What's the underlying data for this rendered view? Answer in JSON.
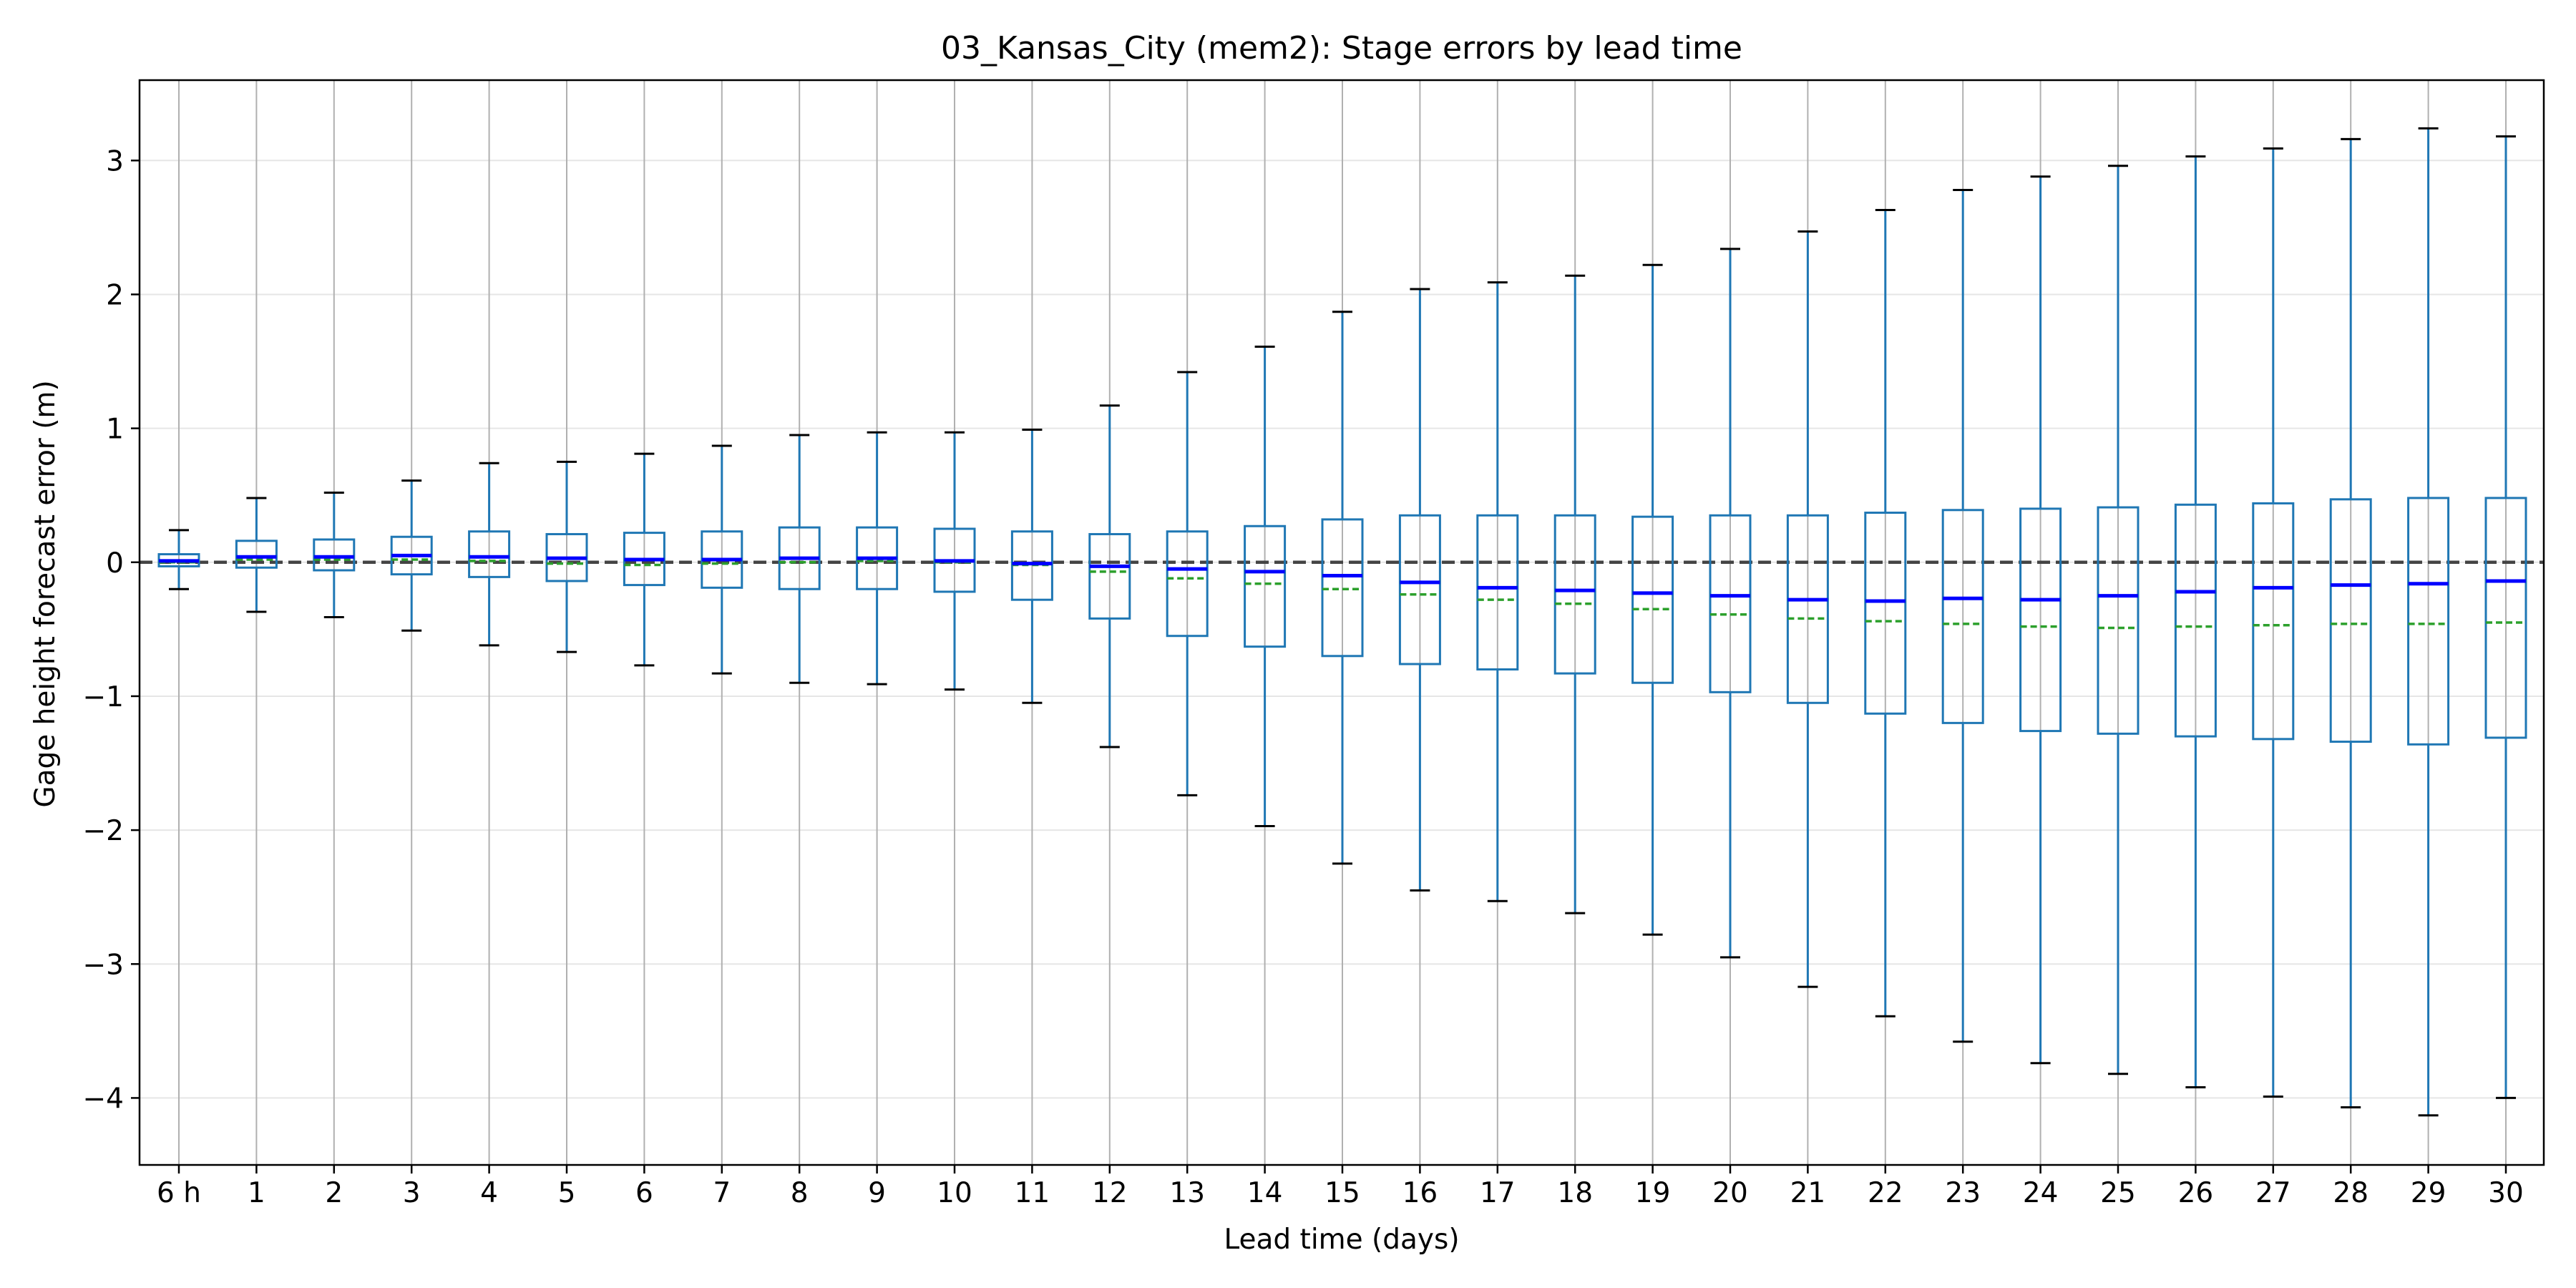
{
  "chart_data": {
    "type": "box",
    "title": "03_Kansas_City (mem2): Stage errors by lead time",
    "xlabel": "Lead time (days)",
    "ylabel": "Gage height forecast error (m)",
    "ylim": [
      -4.5,
      3.6
    ],
    "yticks": [
      3,
      2,
      1,
      0,
      -1,
      -2,
      -3,
      -4
    ],
    "ytick_labels": [
      "3",
      "2",
      "1",
      "0",
      "−1",
      "−2",
      "−3",
      "−4"
    ],
    "grid": {
      "x": true,
      "y": true
    },
    "reference_line": {
      "y": 0,
      "style": "dashed",
      "color": "#444444"
    },
    "colors": {
      "box": "#1f77b4",
      "median": "#0000ff",
      "mean": "#2ca02c",
      "cap": "#000000",
      "grid_x": "#b0b0b0",
      "grid_y": "#e6e6e6"
    },
    "categories": [
      "6 h",
      "1",
      "2",
      "3",
      "4",
      "5",
      "6",
      "7",
      "8",
      "9",
      "10",
      "11",
      "12",
      "13",
      "14",
      "15",
      "16",
      "17",
      "18",
      "19",
      "20",
      "21",
      "22",
      "23",
      "24",
      "25",
      "26",
      "27",
      "28",
      "29",
      "30"
    ],
    "boxes": [
      {
        "whislo": -0.2,
        "q1": -0.03,
        "med": 0.01,
        "q3": 0.06,
        "whishi": 0.24,
        "mean": 0.0
      },
      {
        "whislo": -0.37,
        "q1": -0.04,
        "med": 0.04,
        "q3": 0.16,
        "whishi": 0.48,
        "mean": 0.02
      },
      {
        "whislo": -0.41,
        "q1": -0.06,
        "med": 0.04,
        "q3": 0.17,
        "whishi": 0.52,
        "mean": 0.02
      },
      {
        "whislo": -0.51,
        "q1": -0.09,
        "med": 0.05,
        "q3": 0.19,
        "whishi": 0.61,
        "mean": 0.02
      },
      {
        "whislo": -0.62,
        "q1": -0.11,
        "med": 0.04,
        "q3": 0.23,
        "whishi": 0.74,
        "mean": 0.01
      },
      {
        "whislo": -0.67,
        "q1": -0.14,
        "med": 0.03,
        "q3": 0.21,
        "whishi": 0.75,
        "mean": -0.01
      },
      {
        "whislo": -0.77,
        "q1": -0.17,
        "med": 0.02,
        "q3": 0.22,
        "whishi": 0.81,
        "mean": -0.02
      },
      {
        "whislo": -0.83,
        "q1": -0.19,
        "med": 0.02,
        "q3": 0.23,
        "whishi": 0.87,
        "mean": -0.01
      },
      {
        "whislo": -0.9,
        "q1": -0.2,
        "med": 0.03,
        "q3": 0.26,
        "whishi": 0.95,
        "mean": 0.0
      },
      {
        "whislo": -0.91,
        "q1": -0.2,
        "med": 0.03,
        "q3": 0.26,
        "whishi": 0.97,
        "mean": 0.01
      },
      {
        "whislo": -0.95,
        "q1": -0.22,
        "med": 0.01,
        "q3": 0.25,
        "whishi": 0.97,
        "mean": 0.0
      },
      {
        "whislo": -1.05,
        "q1": -0.28,
        "med": -0.01,
        "q3": 0.23,
        "whishi": 0.99,
        "mean": -0.02
      },
      {
        "whislo": -1.38,
        "q1": -0.42,
        "med": -0.03,
        "q3": 0.21,
        "whishi": 1.17,
        "mean": -0.07
      },
      {
        "whislo": -1.74,
        "q1": -0.55,
        "med": -0.05,
        "q3": 0.23,
        "whishi": 1.42,
        "mean": -0.12
      },
      {
        "whislo": -1.97,
        "q1": -0.63,
        "med": -0.07,
        "q3": 0.27,
        "whishi": 1.61,
        "mean": -0.16
      },
      {
        "whislo": -2.25,
        "q1": -0.7,
        "med": -0.1,
        "q3": 0.32,
        "whishi": 1.87,
        "mean": -0.2
      },
      {
        "whislo": -2.45,
        "q1": -0.76,
        "med": -0.15,
        "q3": 0.35,
        "whishi": 2.04,
        "mean": -0.24
      },
      {
        "whislo": -2.53,
        "q1": -0.8,
        "med": -0.19,
        "q3": 0.35,
        "whishi": 2.09,
        "mean": -0.28
      },
      {
        "whislo": -2.62,
        "q1": -0.83,
        "med": -0.21,
        "q3": 0.35,
        "whishi": 2.14,
        "mean": -0.31
      },
      {
        "whislo": -2.78,
        "q1": -0.9,
        "med": -0.23,
        "q3": 0.34,
        "whishi": 2.22,
        "mean": -0.35
      },
      {
        "whislo": -2.95,
        "q1": -0.97,
        "med": -0.25,
        "q3": 0.35,
        "whishi": 2.34,
        "mean": -0.39
      },
      {
        "whislo": -3.17,
        "q1": -1.05,
        "med": -0.28,
        "q3": 0.35,
        "whishi": 2.47,
        "mean": -0.42
      },
      {
        "whislo": -3.39,
        "q1": -1.13,
        "med": -0.29,
        "q3": 0.37,
        "whishi": 2.63,
        "mean": -0.44
      },
      {
        "whislo": -3.58,
        "q1": -1.2,
        "med": -0.27,
        "q3": 0.39,
        "whishi": 2.78,
        "mean": -0.46
      },
      {
        "whislo": -3.74,
        "q1": -1.26,
        "med": -0.28,
        "q3": 0.4,
        "whishi": 2.88,
        "mean": -0.48
      },
      {
        "whislo": -3.82,
        "q1": -1.28,
        "med": -0.25,
        "q3": 0.41,
        "whishi": 2.96,
        "mean": -0.49
      },
      {
        "whislo": -3.92,
        "q1": -1.3,
        "med": -0.22,
        "q3": 0.43,
        "whishi": 3.03,
        "mean": -0.48
      },
      {
        "whislo": -3.99,
        "q1": -1.32,
        "med": -0.19,
        "q3": 0.44,
        "whishi": 3.09,
        "mean": -0.47
      },
      {
        "whislo": -4.07,
        "q1": -1.34,
        "med": -0.17,
        "q3": 0.47,
        "whishi": 3.16,
        "mean": -0.46
      },
      {
        "whislo": -4.13,
        "q1": -1.36,
        "med": -0.16,
        "q3": 0.48,
        "whishi": 3.24,
        "mean": -0.46
      },
      {
        "whislo": -4.0,
        "q1": -1.31,
        "med": -0.14,
        "q3": 0.48,
        "whishi": 3.18,
        "mean": -0.45
      }
    ]
  }
}
